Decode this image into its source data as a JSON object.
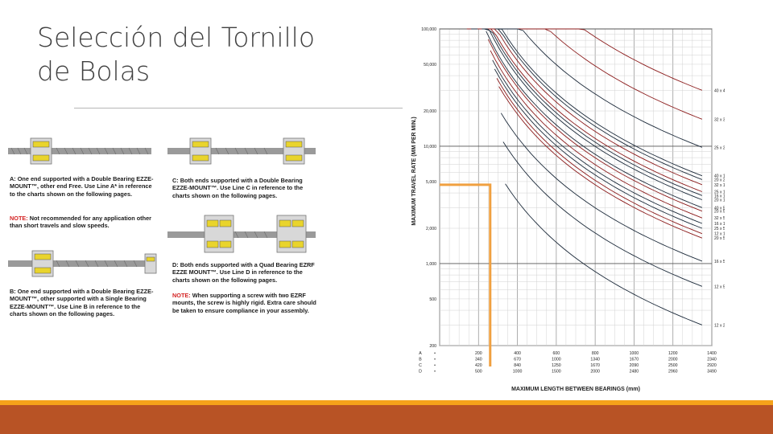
{
  "slide": {
    "title_line1": "Selección del Tornillo",
    "title_line2": "de Bolas"
  },
  "mounting": {
    "captions": [
      {
        "id": "A",
        "text": "A: One end supported with a Double Bearing EZZE-MOUNT™, other end Free. Use Line A* in reference to the charts shown on the following pages."
      },
      {
        "id": "A-note",
        "label": "NOTE:",
        "text": "Not recommended for any application other than short travels and slow speeds."
      },
      {
        "id": "B",
        "text": "B: One end supported with a Double Bearing EZZE-MOUNT™, other supported with a Single Bearing EZZE-MOUNT™. Use Line B in reference to the charts shown on the following pages."
      },
      {
        "id": "C",
        "text": "C: Both ends supported with a Double Bearing EZZE-MOUNT™. Use Line C in reference to the charts shown on the following pages."
      },
      {
        "id": "D",
        "text": "D: Both ends supported with a Quad Bearing EZRF EZZE MOUNT™. Use Line D in reference to the charts shown on the following pages."
      },
      {
        "id": "D-note",
        "label": "NOTE:",
        "text": "When supporting a screw with two EZRF mounts, the screw is highly rigid. Extra care should be taken to ensure compliance in your assembly."
      }
    ]
  },
  "chart_data": {
    "type": "line",
    "ylabel": "MAXIMUM TRAVEL RATE (MM PER MIN.)",
    "xlabel": "MAXIMUM LENGTH BETWEEN BEARINGS (mm)",
    "yscale": "log",
    "ylim": [
      200,
      100000
    ],
    "yticks": [
      "100,000",
      "50,000",
      "20,000",
      "10,000",
      "5,000",
      "2,000",
      "1,000",
      "500",
      "200"
    ],
    "ytick_values": [
      100000,
      50000,
      20000,
      10000,
      5000,
      2000,
      1000,
      500,
      200
    ],
    "x_rows": [
      {
        "line": "A",
        "ticks": [
          "0",
          "200",
          "400",
          "600",
          "800",
          "1000",
          "1200",
          "1400"
        ]
      },
      {
        "line": "B",
        "ticks": [
          "0",
          "340",
          "670",
          "1000",
          "1340",
          "1670",
          "2000",
          "2340"
        ]
      },
      {
        "line": "C",
        "ticks": [
          "0",
          "420",
          "840",
          "1250",
          "1670",
          "2090",
          "2500",
          "2920"
        ]
      },
      {
        "line": "D",
        "ticks": [
          "0",
          "500",
          "1000",
          "1500",
          "2000",
          "2480",
          "2960",
          "3490"
        ]
      }
    ],
    "series": [
      {
        "name": "40 x 40 (70,400)",
        "color": "#8b1a1a",
        "end_y": 30000
      },
      {
        "name": "32 x 32 (70,900)",
        "color": "#8b1a1a",
        "end_y": 17000
      },
      {
        "name": "25 x 25 (70,600)",
        "color": "#1c2a3a",
        "end_y": 9800
      },
      {
        "name": "40 x 10 (17,500)",
        "color": "#1c2a3a",
        "end_y": 5600
      },
      {
        "name": "20 x 20 (70,900)",
        "color": "#1c2a3a",
        "end_y": 5200
      },
      {
        "name": "32 x 10 (21,880)",
        "color": "#8b1a1a",
        "end_y": 4700
      },
      {
        "name": "25 x 10 (23,600)",
        "color": "#8b1a1a",
        "end_y": 4100
      },
      {
        "name": "16 x 16 (70,400)",
        "color": "#1c2a3a",
        "end_y": 3800
      },
      {
        "name": "20 x 10 (35,400)",
        "color": "#1c2a3a",
        "end_y": 3500
      },
      {
        "name": "40 x 5 (8,750)",
        "color": "#1c2a3a",
        "end_y": 3000
      },
      {
        "name": "20 x 5 (10,750)",
        "color": "#8b1a1a",
        "end_y": 2800
      },
      {
        "name": "32 x 5 (10,940)",
        "color": "#8b1a1a",
        "end_y": 2450
      },
      {
        "name": "16 x 10 (43,750)",
        "color": "#1c2a3a",
        "end_y": 2200
      },
      {
        "name": "25 x 5 (14,900)",
        "color": "#1c2a3a",
        "end_y": 2000
      },
      {
        "name": "12 x 10 (58,330)",
        "color": "#8b1a1a",
        "end_y": 1800
      },
      {
        "name": "20 x 5 (17,500)",
        "color": "#8b1a1a",
        "end_y": 1650
      },
      {
        "name": "16 x 5 (21,875)",
        "color": "#1c2a3a",
        "end_y": 1050
      },
      {
        "name": "12 x 5 (29,170)",
        "color": "#1c2a3a",
        "end_y": 640
      },
      {
        "name": "12 x 2 (11,666)",
        "color": "#1c2a3a",
        "end_y": 300
      }
    ],
    "highlight": {
      "y": 4700,
      "x_line": "A",
      "x": 260,
      "color": "#f0a040"
    },
    "grid": true
  }
}
